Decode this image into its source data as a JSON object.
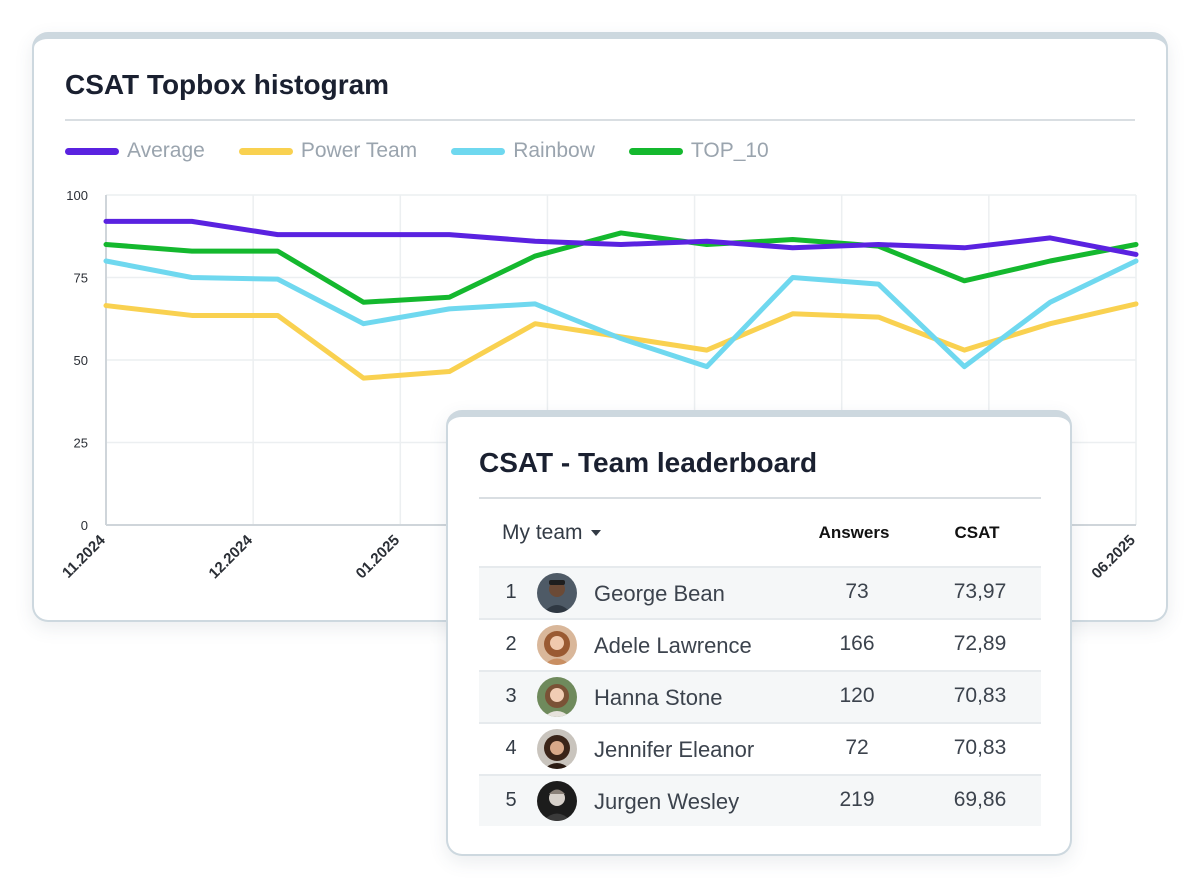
{
  "chart_card": {
    "title": "CSAT Topbox histogram"
  },
  "legend": [
    {
      "name": "Average",
      "color": "#5a22e0"
    },
    {
      "name": "Power Team",
      "color": "#f9d150"
    },
    {
      "name": "Rainbow",
      "color": "#6fd8ef"
    },
    {
      "name": "TOP_10",
      "color": "#14b82e"
    }
  ],
  "chart_data": {
    "type": "line",
    "ylim": [
      0,
      100
    ],
    "yticks": [
      0,
      25,
      50,
      75,
      100
    ],
    "grid": true,
    "legend_position": "top-left",
    "x_tick_labels": [
      "11.2024",
      "12.2024",
      "01.2025",
      "06.2025"
    ],
    "series": [
      {
        "name": "Average",
        "color": "#5a22e0",
        "values": [
          92,
          92,
          88,
          88,
          88,
          86,
          85,
          86,
          84,
          85,
          84,
          87,
          82
        ]
      },
      {
        "name": "Power Team",
        "color": "#f9d150",
        "values": [
          66.5,
          63.5,
          63.5,
          44.5,
          46.5,
          61,
          57,
          53,
          64,
          63,
          53,
          61,
          67
        ]
      },
      {
        "name": "Rainbow",
        "color": "#6fd8ef",
        "values": [
          80,
          75,
          74.5,
          61,
          65.5,
          67,
          56.5,
          48,
          75,
          73,
          48,
          67.5,
          80
        ]
      },
      {
        "name": "TOP_10",
        "color": "#14b82e",
        "values": [
          85,
          83,
          83,
          67.5,
          69,
          81.5,
          88.5,
          85,
          86.5,
          84.5,
          74,
          80,
          85
        ]
      }
    ]
  },
  "leaderboard": {
    "title": "CSAT - Team leaderboard",
    "selector": "My team",
    "columns": {
      "answers": "Answers",
      "csat": "CSAT"
    },
    "rows": [
      {
        "rank": "1",
        "name": "George Bean",
        "answers": "73",
        "csat": "73,97"
      },
      {
        "rank": "2",
        "name": "Adele Lawrence",
        "answers": "166",
        "csat": "72,89"
      },
      {
        "rank": "3",
        "name": "Hanna Stone",
        "answers": "120",
        "csat": "70,83"
      },
      {
        "rank": "4",
        "name": "Jennifer Eleanor",
        "answers": "72",
        "csat": "70,83"
      },
      {
        "rank": "5",
        "name": "Jurgen Wesley",
        "answers": "219",
        "csat": "69,86"
      }
    ]
  }
}
